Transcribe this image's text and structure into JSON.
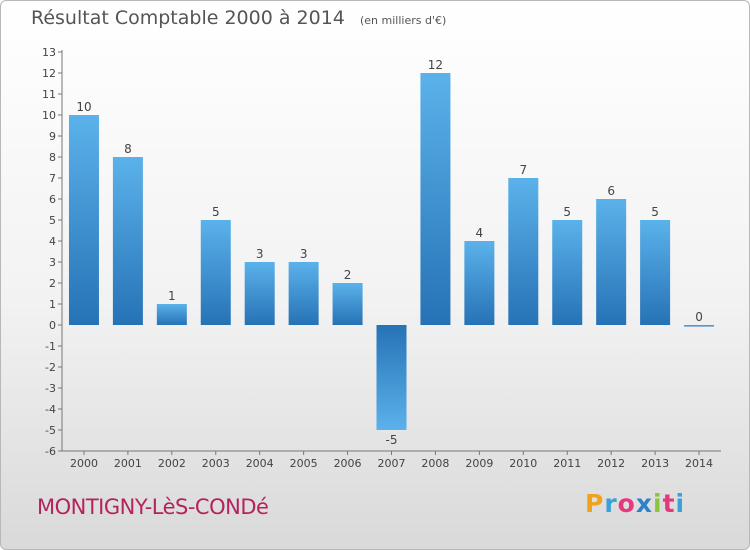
{
  "header": {
    "title": "Résultat Comptable 2000 à 2014",
    "subtitle": "(en milliers d'€)"
  },
  "footer": {
    "commune": "MONTIGNY-LèS-CONDé"
  },
  "logo": {
    "letters": [
      "P",
      "r",
      "o",
      "x",
      "i",
      "t",
      "i"
    ],
    "colors": [
      "#f0a21c",
      "#3aa0d8",
      "#e5387f",
      "#2f80c8",
      "#8cc43f",
      "#e5387f",
      "#3aa0d8"
    ]
  },
  "chart_data": {
    "type": "bar",
    "categories": [
      "2000",
      "2001",
      "2002",
      "2003",
      "2004",
      "2005",
      "2006",
      "2007",
      "2008",
      "2009",
      "2010",
      "2011",
      "2012",
      "2013",
      "2014"
    ],
    "values": [
      10,
      8,
      1,
      5,
      3,
      3,
      2,
      -5,
      12,
      4,
      7,
      5,
      6,
      5,
      0
    ],
    "yticks": [
      "13",
      "12",
      "11",
      "10",
      "9",
      "8",
      "7",
      "6",
      "5",
      "4",
      "3",
      "2",
      "1",
      "0",
      "-1",
      "-2",
      "-3",
      "-4",
      "-5",
      "-6"
    ],
    "ylim": [
      -6,
      13
    ],
    "grid": false,
    "colors": {
      "bar_light": "#5bb2ea",
      "bar_dark": "#2672b6"
    }
  }
}
